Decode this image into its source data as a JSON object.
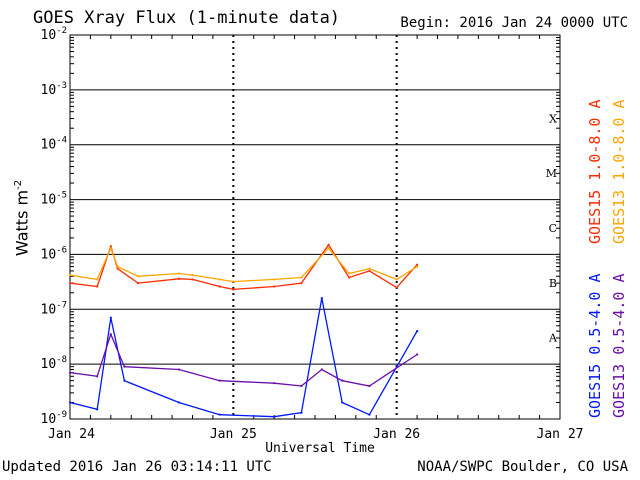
{
  "header": {
    "title": "GOES Xray Flux (1-minute data)",
    "begin": "Begin:  2016 Jan 24 0000 UTC"
  },
  "footer": {
    "updated": "Updated 2016 Jan 26 03:14:11 UTC",
    "credit": "NOAA/SWPC Boulder, CO USA"
  },
  "chart_data": {
    "type": "line",
    "title": "GOES Xray Flux (1-minute data)",
    "xlabel": "Universal Time",
    "ylabel_base": "Watts m",
    "ylabel_exp": "-2",
    "y_scale": "log",
    "ylim": [
      1e-09,
      0.01
    ],
    "xlim_days": [
      "2016-01-24",
      "2016-01-27"
    ],
    "x_ticks": [
      "Jan 24",
      "Jan 25",
      "Jan 26",
      "Jan 27"
    ],
    "y_ticks": [
      {
        "base": "10",
        "exp": "-9"
      },
      {
        "base": "10",
        "exp": "-8"
      },
      {
        "base": "10",
        "exp": "-7"
      },
      {
        "base": "10",
        "exp": "-6"
      },
      {
        "base": "10",
        "exp": "-5"
      },
      {
        "base": "10",
        "exp": "-4"
      },
      {
        "base": "10",
        "exp": "-3"
      },
      {
        "base": "10",
        "exp": "-2"
      }
    ],
    "flare_classes": [
      "A",
      "B",
      "C",
      "M",
      "X"
    ],
    "grid": true,
    "legend_position": "right, vertical",
    "series": [
      {
        "name": "GOES15 1.0-8.0 A",
        "color": "#ff2a00",
        "x": [
          "2016-01-24 00:00",
          "2016-01-24 04:00",
          "2016-01-24 06:00",
          "2016-01-24 07:00",
          "2016-01-24 10:00",
          "2016-01-24 16:00",
          "2016-01-24 18:00",
          "2016-01-24 22:00",
          "2016-01-25 00:00",
          "2016-01-25 06:00",
          "2016-01-25 10:00",
          "2016-01-25 14:00",
          "2016-01-25 17:00",
          "2016-01-25 20:00",
          "2016-01-26 00:00",
          "2016-01-26 03:00"
        ],
        "values": [
          3e-07,
          2.6e-07,
          1.4e-06,
          5.5e-07,
          3e-07,
          3.6e-07,
          3.5e-07,
          2.6e-07,
          2.3e-07,
          2.6e-07,
          3e-07,
          1.5e-06,
          3.8e-07,
          5e-07,
          2.5e-07,
          6.5e-07
        ]
      },
      {
        "name": "GOES13 1.0-8.0 A",
        "color": "#ffa500",
        "x": [
          "2016-01-24 00:00",
          "2016-01-24 04:00",
          "2016-01-24 06:00",
          "2016-01-24 07:00",
          "2016-01-24 10:00",
          "2016-01-24 16:00",
          "2016-01-24 18:00",
          "2016-01-24 22:00",
          "2016-01-25 00:00",
          "2016-01-25 06:00",
          "2016-01-25 10:00",
          "2016-01-25 14:00",
          "2016-01-25 17:00",
          "2016-01-25 20:00",
          "2016-01-26 00:00",
          "2016-01-26 03:00"
        ],
        "values": [
          4.2e-07,
          3.5e-07,
          1.3e-06,
          6e-07,
          4e-07,
          4.5e-07,
          4.2e-07,
          3.5e-07,
          3.2e-07,
          3.5e-07,
          3.8e-07,
          1.3e-06,
          4.5e-07,
          5.5e-07,
          3.5e-07,
          6e-07
        ]
      },
      {
        "name": "GOES15 0.5-4.0 A",
        "color": "#0018ff",
        "x": [
          "2016-01-24 00:00",
          "2016-01-24 04:00",
          "2016-01-24 06:00",
          "2016-01-24 08:00",
          "2016-01-24 16:00",
          "2016-01-24 22:00",
          "2016-01-25 06:00",
          "2016-01-25 10:00",
          "2016-01-25 13:00",
          "2016-01-25 16:00",
          "2016-01-25 20:00",
          "2016-01-26 03:00"
        ],
        "values": [
          2e-09,
          1.5e-09,
          7e-08,
          5e-09,
          2e-09,
          1.2e-09,
          1.1e-09,
          1.3e-09,
          1.6e-07,
          2e-09,
          1.2e-09,
          4e-08
        ]
      },
      {
        "name": "GOES13 0.5-4.0 A",
        "color": "#6a0dad",
        "x": [
          "2016-01-24 00:00",
          "2016-01-24 04:00",
          "2016-01-24 06:00",
          "2016-01-24 08:00",
          "2016-01-24 16:00",
          "2016-01-24 22:00",
          "2016-01-25 06:00",
          "2016-01-25 10:00",
          "2016-01-25 13:00",
          "2016-01-25 16:00",
          "2016-01-25 20:00",
          "2016-01-26 03:00"
        ],
        "values": [
          7e-09,
          6e-09,
          3.5e-08,
          9e-09,
          8e-09,
          5e-09,
          4.5e-09,
          4e-09,
          8e-09,
          5e-09,
          4e-09,
          1.5e-08
        ]
      }
    ]
  }
}
